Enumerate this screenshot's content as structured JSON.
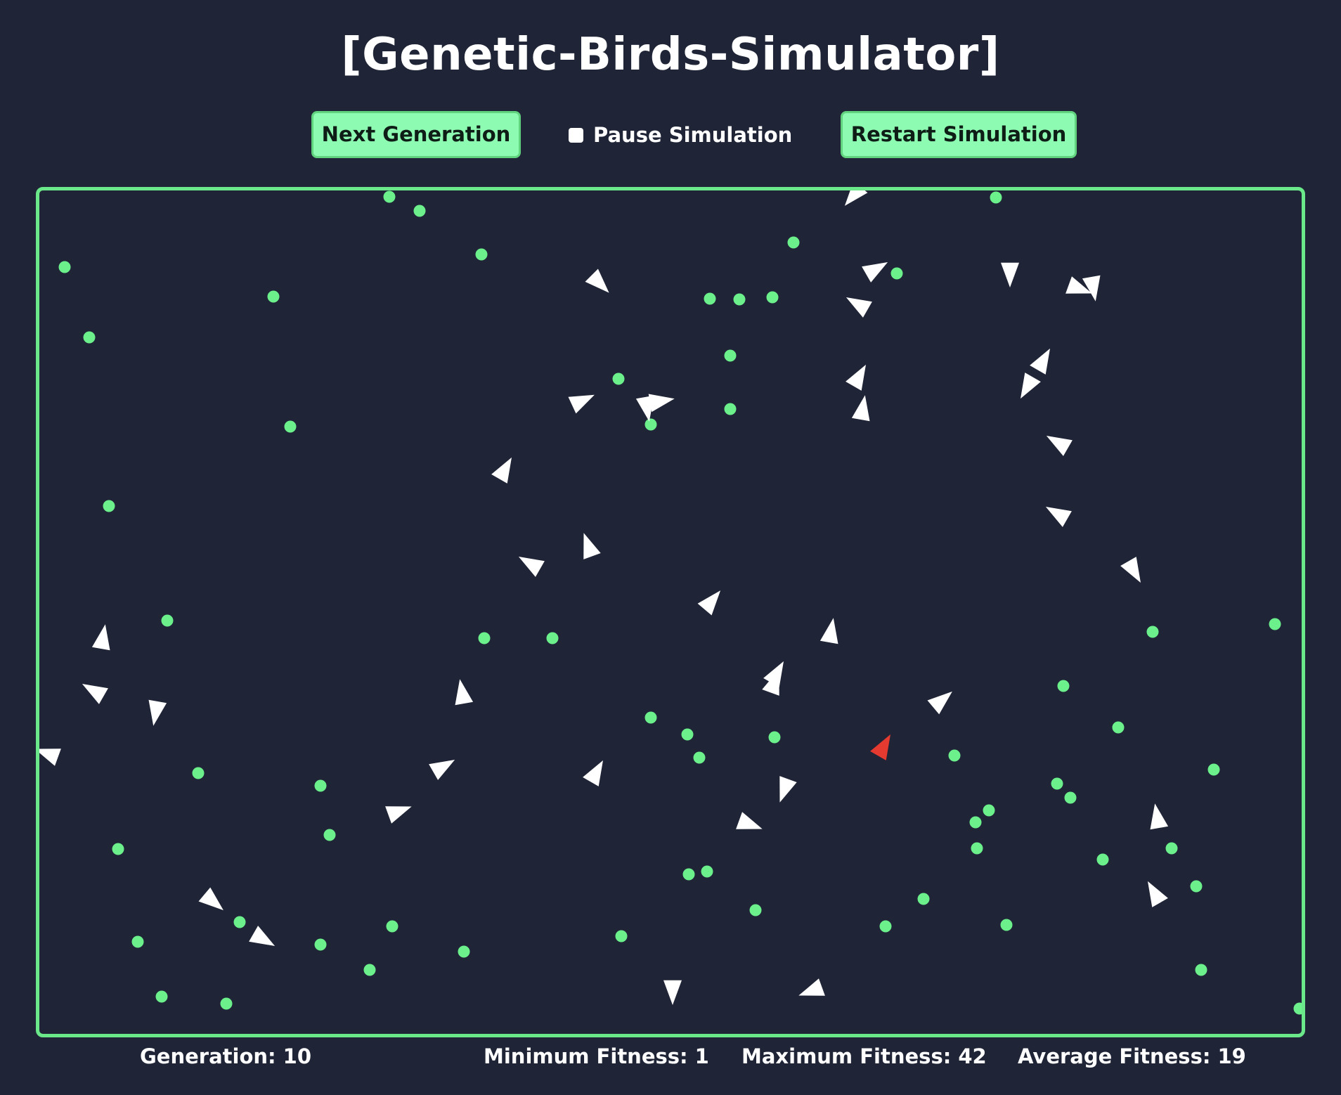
{
  "header": {
    "title": "[Genetic-Birds-Simulator]"
  },
  "controls": {
    "next_label": "Next Generation",
    "pause_label": "Pause Simulation",
    "pause_checked": false,
    "restart_label": "Restart Simulation"
  },
  "stats": {
    "generation_label": "Generation:",
    "generation_value": "10",
    "min_label": "Minimum Fitness:",
    "min_value": "1",
    "max_label": "Maximum Fitness:",
    "max_value": "42",
    "avg_label": "Average Fitness:",
    "avg_value": "19"
  },
  "colors": {
    "background": "#1f2436",
    "accent": "#8dfbb1",
    "border": "#6ae88a",
    "food": "#6bf08c",
    "bird": "#ffffff",
    "best_bird": "#e53a2f"
  }
}
